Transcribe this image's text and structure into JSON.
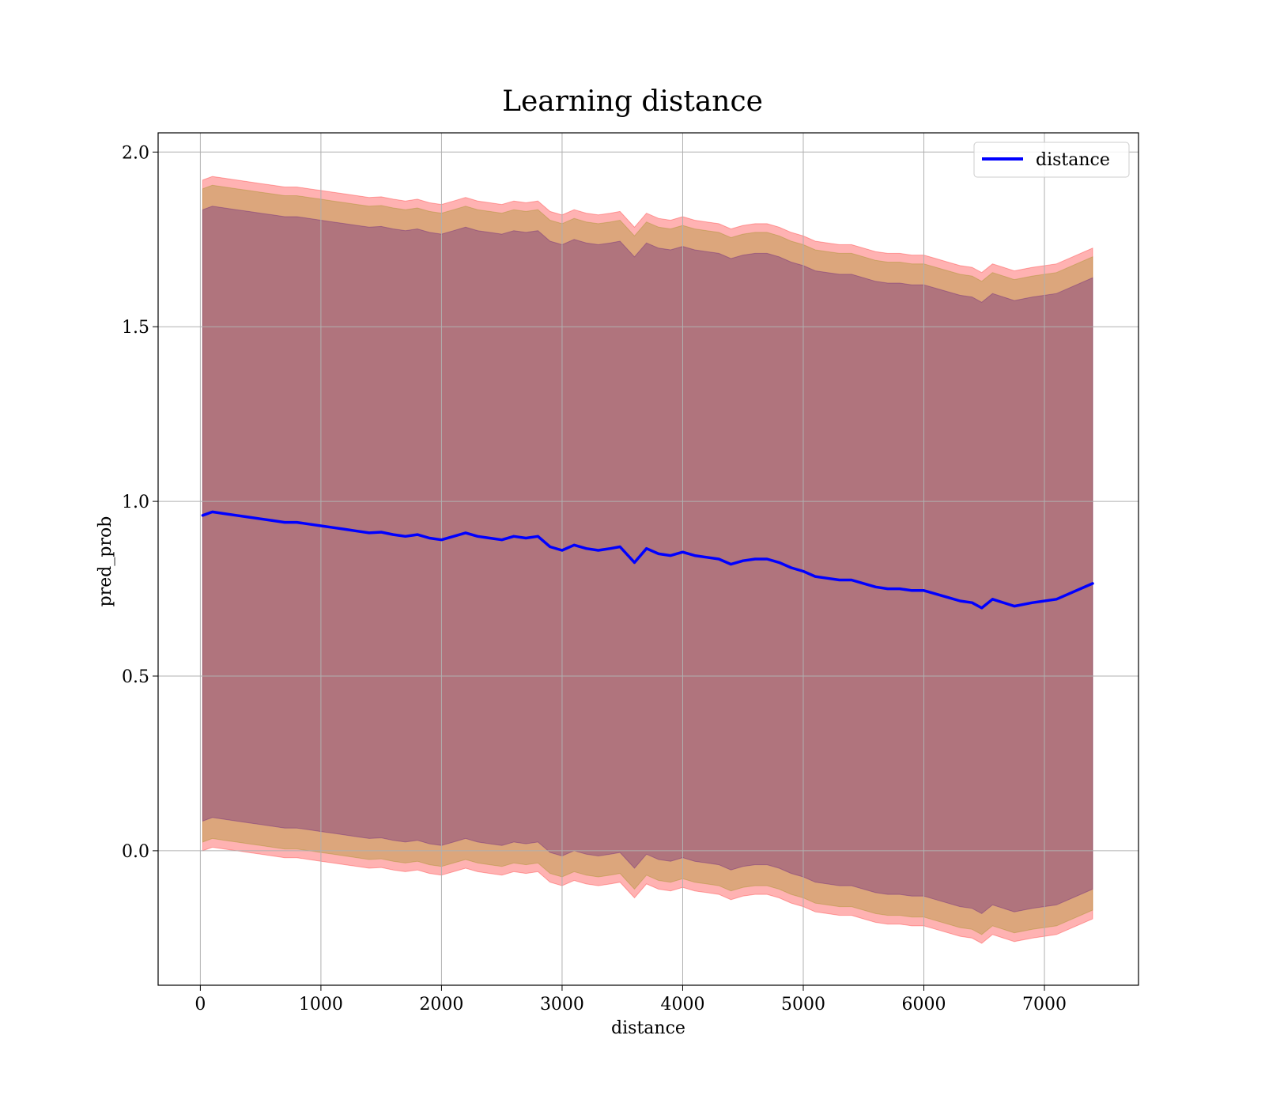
{
  "chart_data": {
    "type": "line",
    "title": "Learning distance",
    "xlabel": "distance",
    "ylabel": "pred_prob",
    "xlim": [
      -350,
      7780
    ],
    "ylim": [
      -0.385,
      2.055
    ],
    "xticks": [
      0,
      1000,
      2000,
      3000,
      4000,
      5000,
      6000,
      7000
    ],
    "xtick_labels": [
      "0",
      "1000",
      "2000",
      "3000",
      "4000",
      "5000",
      "6000",
      "7000"
    ],
    "yticks": [
      0.0,
      0.5,
      1.0,
      1.5,
      2.0
    ],
    "ytick_labels": [
      "0.0",
      "0.5",
      "1.0",
      "1.5",
      "2.0"
    ],
    "grid": true,
    "legend": {
      "position": "top-right",
      "entries": [
        "distance"
      ]
    },
    "colors": {
      "line": "#0000ff",
      "band_outer": "#ff0000",
      "band_middle": "#8c8c00",
      "band_inner": "#4b0082"
    },
    "x": [
      20,
      100,
      200,
      300,
      400,
      500,
      600,
      700,
      800,
      900,
      1000,
      1100,
      1200,
      1300,
      1400,
      1500,
      1600,
      1700,
      1800,
      1900,
      2000,
      2100,
      2200,
      2300,
      2400,
      2500,
      2600,
      2700,
      2800,
      2900,
      3000,
      3100,
      3200,
      3300,
      3400,
      3480,
      3600,
      3700,
      3800,
      3900,
      4000,
      4100,
      4200,
      4300,
      4400,
      4500,
      4600,
      4700,
      4800,
      4900,
      5000,
      5100,
      5200,
      5300,
      5400,
      5500,
      5600,
      5700,
      5800,
      5900,
      6000,
      6100,
      6200,
      6300,
      6400,
      6480,
      6570,
      6750,
      6900,
      7100,
      7400
    ],
    "series": [
      {
        "name": "distance",
        "values": [
          0.96,
          0.97,
          0.965,
          0.96,
          0.955,
          0.95,
          0.945,
          0.94,
          0.94,
          0.935,
          0.93,
          0.925,
          0.92,
          0.915,
          0.91,
          0.912,
          0.905,
          0.9,
          0.905,
          0.895,
          0.89,
          0.9,
          0.91,
          0.9,
          0.895,
          0.89,
          0.9,
          0.895,
          0.9,
          0.87,
          0.86,
          0.875,
          0.865,
          0.86,
          0.865,
          0.87,
          0.825,
          0.865,
          0.85,
          0.845,
          0.855,
          0.845,
          0.84,
          0.835,
          0.82,
          0.83,
          0.835,
          0.835,
          0.825,
          0.81,
          0.8,
          0.785,
          0.78,
          0.775,
          0.775,
          0.765,
          0.755,
          0.75,
          0.75,
          0.745,
          0.745,
          0.735,
          0.725,
          0.715,
          0.71,
          0.695,
          0.72,
          0.7,
          0.71,
          0.72,
          0.765
        ]
      }
    ],
    "bands": [
      {
        "name": "",
        "color": "#ff0000",
        "opacity": 0.3,
        "halfwidth": 0.96
      },
      {
        "name": "",
        "color": "#8c8c00",
        "opacity": 0.3,
        "halfwidth": 0.935
      },
      {
        "name": "",
        "color": "#4b0082",
        "opacity": 0.3,
        "halfwidth": 0.875
      }
    ]
  }
}
